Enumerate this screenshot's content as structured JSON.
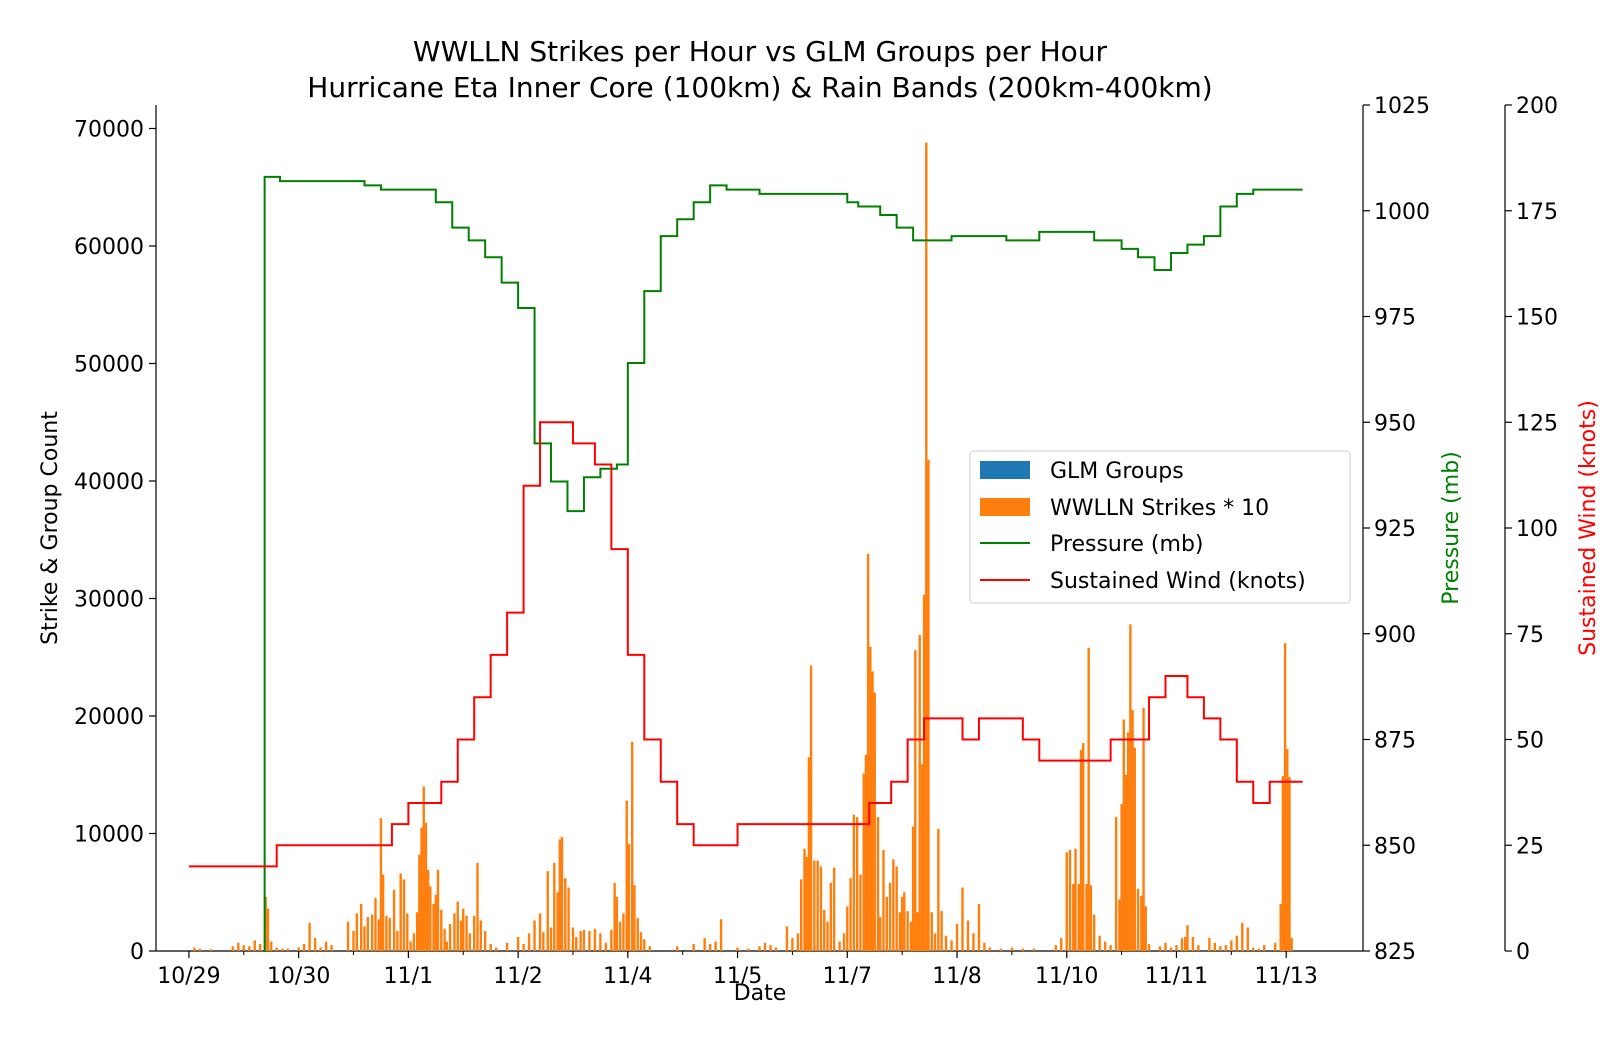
{
  "chart_data": {
    "type": "bar",
    "title_line1": "WWLLN Strikes per Hour vs GLM Groups per Hour",
    "title_line2": "Hurricane Eta Inner Core (100km) & Rain Bands (200km-400km)",
    "xlabel": "Date",
    "ylabel_left": "Strike & Group Count",
    "ylabel_pressure": "Pressure (mb)",
    "ylabel_wind": "Sustained Wind (knots)",
    "xlim": [
      -0.3,
      10.7
    ],
    "ylim_left": [
      0,
      72000
    ],
    "ylim_pressure": [
      825,
      1025
    ],
    "ylim_wind": [
      0,
      200
    ],
    "x_tick_labels": [
      "10/29",
      "10/30",
      "11/1",
      "11/2",
      "11/4",
      "11/5",
      "11/7",
      "11/8",
      "11/10",
      "11/11",
      "11/13"
    ],
    "left_ticks": [
      "0",
      "10000",
      "20000",
      "30000",
      "40000",
      "50000",
      "60000",
      "70000"
    ],
    "pressure_ticks": [
      "825",
      "850",
      "875",
      "900",
      "925",
      "950",
      "975",
      "1000",
      "1025"
    ],
    "wind_ticks": [
      "0",
      "25",
      "50",
      "75",
      "100",
      "125",
      "150",
      "175",
      "200"
    ],
    "legend": {
      "position": "center-right",
      "entries": [
        "GLM Groups",
        "WWLLN Strikes * 10",
        "Pressure (mb)",
        "Sustained Wind (knots)"
      ]
    },
    "colors": {
      "glm": "#1f77b4",
      "wwlln": "#ff7f0e",
      "pressure": "#008000",
      "wind": "#ff0000"
    },
    "wwlln_bars": [
      [
        0.05,
        300
      ],
      [
        0.1,
        200
      ],
      [
        0.2,
        150
      ],
      [
        0.4,
        400
      ],
      [
        0.45,
        700
      ],
      [
        0.5,
        500
      ],
      [
        0.55,
        400
      ],
      [
        0.6,
        900
      ],
      [
        0.65,
        600
      ],
      [
        0.7,
        4600
      ],
      [
        0.72,
        3600
      ],
      [
        0.75,
        800
      ],
      [
        0.8,
        300
      ],
      [
        0.85,
        200
      ],
      [
        0.9,
        200
      ],
      [
        1.0,
        300
      ],
      [
        1.05,
        600
      ],
      [
        1.1,
        2400
      ],
      [
        1.15,
        1100
      ],
      [
        1.2,
        300
      ],
      [
        1.25,
        800
      ],
      [
        1.3,
        500
      ],
      [
        1.45,
        2500
      ],
      [
        1.5,
        1700
      ],
      [
        1.53,
        3200
      ],
      [
        1.57,
        4000
      ],
      [
        1.6,
        2100
      ],
      [
        1.63,
        2900
      ],
      [
        1.67,
        3100
      ],
      [
        1.7,
        4500
      ],
      [
        1.73,
        2700
      ],
      [
        1.75,
        11300
      ],
      [
        1.77,
        6500
      ],
      [
        1.8,
        3000
      ],
      [
        1.83,
        2800
      ],
      [
        1.87,
        5200
      ],
      [
        1.9,
        1700
      ],
      [
        1.93,
        6600
      ],
      [
        1.96,
        6100
      ],
      [
        1.99,
        3200
      ],
      [
        2.02,
        800
      ],
      [
        2.05,
        1500
      ],
      [
        2.08,
        3300
      ],
      [
        2.1,
        8200
      ],
      [
        2.12,
        10500
      ],
      [
        2.14,
        14000
      ],
      [
        2.16,
        10900
      ],
      [
        2.18,
        6900
      ],
      [
        2.2,
        5500
      ],
      [
        2.23,
        4000
      ],
      [
        2.25,
        4800
      ],
      [
        2.27,
        6900
      ],
      [
        2.3,
        3500
      ],
      [
        2.33,
        1900
      ],
      [
        2.35,
        800
      ],
      [
        2.38,
        2300
      ],
      [
        2.42,
        3200
      ],
      [
        2.45,
        4200
      ],
      [
        2.48,
        2600
      ],
      [
        2.5,
        3600
      ],
      [
        2.53,
        3000
      ],
      [
        2.56,
        1500
      ],
      [
        2.6,
        3000
      ],
      [
        2.63,
        7500
      ],
      [
        2.66,
        2600
      ],
      [
        2.7,
        1700
      ],
      [
        2.75,
        600
      ],
      [
        2.8,
        300
      ],
      [
        2.9,
        700
      ],
      [
        3.0,
        1200
      ],
      [
        3.05,
        600
      ],
      [
        3.1,
        1500
      ],
      [
        3.15,
        2600
      ],
      [
        3.2,
        3200
      ],
      [
        3.23,
        1600
      ],
      [
        3.27,
        6800
      ],
      [
        3.3,
        2000
      ],
      [
        3.33,
        7500
      ],
      [
        3.36,
        5000
      ],
      [
        3.38,
        9500
      ],
      [
        3.4,
        9700
      ],
      [
        3.43,
        6200
      ],
      [
        3.46,
        5400
      ],
      [
        3.5,
        2000
      ],
      [
        3.53,
        1200
      ],
      [
        3.57,
        1700
      ],
      [
        3.6,
        1800
      ],
      [
        3.65,
        1700
      ],
      [
        3.7,
        1900
      ],
      [
        3.75,
        1500
      ],
      [
        3.8,
        700
      ],
      [
        3.85,
        1800
      ],
      [
        3.88,
        5800
      ],
      [
        3.9,
        4600
      ],
      [
        3.93,
        2500
      ],
      [
        3.96,
        3200
      ],
      [
        3.99,
        12800
      ],
      [
        4.01,
        9100
      ],
      [
        4.04,
        17800
      ],
      [
        4.06,
        5600
      ],
      [
        4.09,
        2800
      ],
      [
        4.12,
        1600
      ],
      [
        4.15,
        1000
      ],
      [
        4.2,
        400
      ],
      [
        4.45,
        400
      ],
      [
        4.6,
        600
      ],
      [
        4.7,
        1100
      ],
      [
        4.75,
        600
      ],
      [
        4.8,
        800
      ],
      [
        4.85,
        2700
      ],
      [
        5.0,
        300
      ],
      [
        5.1,
        200
      ],
      [
        5.2,
        400
      ],
      [
        5.25,
        700
      ],
      [
        5.3,
        500
      ],
      [
        5.35,
        300
      ],
      [
        5.45,
        2100
      ],
      [
        5.5,
        1100
      ],
      [
        5.55,
        1500
      ],
      [
        5.58,
        6100
      ],
      [
        5.61,
        8700
      ],
      [
        5.63,
        8000
      ],
      [
        5.65,
        16500
      ],
      [
        5.67,
        24300
      ],
      [
        5.7,
        7700
      ],
      [
        5.73,
        7700
      ],
      [
        5.76,
        7200
      ],
      [
        5.79,
        3500
      ],
      [
        5.82,
        2500
      ],
      [
        5.85,
        5800
      ],
      [
        5.88,
        7100
      ],
      [
        5.93,
        800
      ],
      [
        5.97,
        1500
      ],
      [
        6.0,
        3800
      ],
      [
        6.03,
        6200
      ],
      [
        6.06,
        11600
      ],
      [
        6.09,
        11400
      ],
      [
        6.12,
        6500
      ],
      [
        6.15,
        15100
      ],
      [
        6.17,
        16700
      ],
      [
        6.19,
        33800
      ],
      [
        6.21,
        25900
      ],
      [
        6.23,
        23800
      ],
      [
        6.25,
        22000
      ],
      [
        6.28,
        11400
      ],
      [
        6.3,
        2900
      ],
      [
        6.33,
        8600
      ],
      [
        6.36,
        4600
      ],
      [
        6.39,
        5800
      ],
      [
        6.42,
        7800
      ],
      [
        6.45,
        7200
      ],
      [
        6.48,
        3300
      ],
      [
        6.5,
        4600
      ],
      [
        6.52,
        5000
      ],
      [
        6.55,
        3400
      ],
      [
        6.58,
        2500
      ],
      [
        6.6,
        10600
      ],
      [
        6.62,
        25600
      ],
      [
        6.64,
        3300
      ],
      [
        6.66,
        26900
      ],
      [
        6.68,
        15900
      ],
      [
        6.7,
        30300
      ],
      [
        6.72,
        68800
      ],
      [
        6.74,
        41800
      ],
      [
        6.77,
        3300
      ],
      [
        6.8,
        1500
      ],
      [
        6.83,
        10400
      ],
      [
        6.86,
        3400
      ],
      [
        6.9,
        1300
      ],
      [
        6.95,
        900
      ],
      [
        7.0,
        2300
      ],
      [
        7.05,
        5400
      ],
      [
        7.1,
        2600
      ],
      [
        7.15,
        1500
      ],
      [
        7.2,
        4000
      ],
      [
        7.25,
        700
      ],
      [
        7.3,
        300
      ],
      [
        7.4,
        200
      ],
      [
        7.5,
        300
      ],
      [
        7.6,
        200
      ],
      [
        7.7,
        200
      ],
      [
        7.9,
        500
      ],
      [
        7.95,
        1100
      ],
      [
        8.0,
        8400
      ],
      [
        8.03,
        8600
      ],
      [
        8.06,
        5700
      ],
      [
        8.08,
        8700
      ],
      [
        8.11,
        5700
      ],
      [
        8.13,
        17100
      ],
      [
        8.15,
        17700
      ],
      [
        8.18,
        5700
      ],
      [
        8.2,
        25800
      ],
      [
        8.22,
        5600
      ],
      [
        8.25,
        3100
      ],
      [
        8.3,
        1300
      ],
      [
        8.35,
        800
      ],
      [
        8.4,
        500
      ],
      [
        8.45,
        11400
      ],
      [
        8.48,
        4400
      ],
      [
        8.5,
        12500
      ],
      [
        8.52,
        19700
      ],
      [
        8.54,
        15000
      ],
      [
        8.56,
        18600
      ],
      [
        8.58,
        27800
      ],
      [
        8.6,
        20500
      ],
      [
        8.62,
        17300
      ],
      [
        8.65,
        5300
      ],
      [
        8.68,
        4700
      ],
      [
        8.7,
        20700
      ],
      [
        8.72,
        3800
      ],
      [
        8.75,
        600
      ],
      [
        8.85,
        400
      ],
      [
        8.9,
        700
      ],
      [
        8.95,
        300
      ],
      [
        9.0,
        500
      ],
      [
        9.05,
        1100
      ],
      [
        9.08,
        1200
      ],
      [
        9.1,
        2200
      ],
      [
        9.15,
        1200
      ],
      [
        9.2,
        500
      ],
      [
        9.3,
        1100
      ],
      [
        9.35,
        700
      ],
      [
        9.4,
        400
      ],
      [
        9.45,
        500
      ],
      [
        9.5,
        900
      ],
      [
        9.55,
        1300
      ],
      [
        9.6,
        2400
      ],
      [
        9.65,
        2000
      ],
      [
        9.7,
        300
      ],
      [
        9.75,
        200
      ],
      [
        9.8,
        500
      ],
      [
        9.9,
        700
      ],
      [
        9.95,
        4000
      ],
      [
        9.97,
        14900
      ],
      [
        9.99,
        26200
      ],
      [
        10.01,
        17200
      ],
      [
        10.03,
        14800
      ],
      [
        10.05,
        1100
      ]
    ],
    "pressure_steps": [
      [
        0.68,
        825
      ],
      [
        0.69,
        1008
      ],
      [
        0.83,
        1007
      ],
      [
        1.45,
        1007
      ],
      [
        1.6,
        1006
      ],
      [
        1.75,
        1005
      ],
      [
        2.1,
        1005
      ],
      [
        2.25,
        1002
      ],
      [
        2.4,
        996
      ],
      [
        2.55,
        993
      ],
      [
        2.7,
        989
      ],
      [
        2.85,
        983
      ],
      [
        3.0,
        977
      ],
      [
        3.15,
        945
      ],
      [
        3.3,
        936
      ],
      [
        3.45,
        929
      ],
      [
        3.6,
        937
      ],
      [
        3.75,
        939
      ],
      [
        3.9,
        940
      ],
      [
        4.0,
        964
      ],
      [
        4.15,
        981
      ],
      [
        4.3,
        994
      ],
      [
        4.45,
        998
      ],
      [
        4.6,
        1002
      ],
      [
        4.75,
        1006
      ],
      [
        4.9,
        1005
      ],
      [
        5.2,
        1004
      ],
      [
        5.8,
        1004
      ],
      [
        6.0,
        1002
      ],
      [
        6.1,
        1001
      ],
      [
        6.3,
        999
      ],
      [
        6.45,
        996
      ],
      [
        6.6,
        993
      ],
      [
        6.75,
        993
      ],
      [
        6.95,
        994
      ],
      [
        7.45,
        993
      ],
      [
        7.75,
        995
      ],
      [
        8.25,
        993
      ],
      [
        8.5,
        991
      ],
      [
        8.65,
        989
      ],
      [
        8.8,
        986
      ],
      [
        8.95,
        990
      ],
      [
        9.1,
        992
      ],
      [
        9.25,
        994
      ],
      [
        9.4,
        1001
      ],
      [
        9.55,
        1004
      ],
      [
        9.7,
        1005
      ],
      [
        9.85,
        1005
      ],
      [
        10.15,
        1005
      ]
    ],
    "wind_steps": [
      [
        0.0,
        20
      ],
      [
        0.8,
        25
      ],
      [
        1.85,
        30
      ],
      [
        2.0,
        35
      ],
      [
        2.3,
        40
      ],
      [
        2.45,
        50
      ],
      [
        2.6,
        60
      ],
      [
        2.75,
        70
      ],
      [
        2.9,
        80
      ],
      [
        3.05,
        110
      ],
      [
        3.2,
        125
      ],
      [
        3.5,
        120
      ],
      [
        3.7,
        115
      ],
      [
        3.85,
        95
      ],
      [
        4.0,
        70
      ],
      [
        4.15,
        50
      ],
      [
        4.3,
        40
      ],
      [
        4.45,
        30
      ],
      [
        4.6,
        25
      ],
      [
        5.0,
        30
      ],
      [
        5.9,
        30
      ],
      [
        6.2,
        35
      ],
      [
        6.4,
        40
      ],
      [
        6.55,
        50
      ],
      [
        6.7,
        55
      ],
      [
        6.9,
        55
      ],
      [
        7.05,
        50
      ],
      [
        7.2,
        55
      ],
      [
        7.6,
        50
      ],
      [
        7.75,
        45
      ],
      [
        8.2,
        45
      ],
      [
        8.4,
        50
      ],
      [
        8.75,
        60
      ],
      [
        8.9,
        65
      ],
      [
        9.1,
        60
      ],
      [
        9.25,
        55
      ],
      [
        9.4,
        50
      ],
      [
        9.55,
        40
      ],
      [
        9.7,
        35
      ],
      [
        9.85,
        40
      ],
      [
        10.15,
        40
      ]
    ]
  }
}
